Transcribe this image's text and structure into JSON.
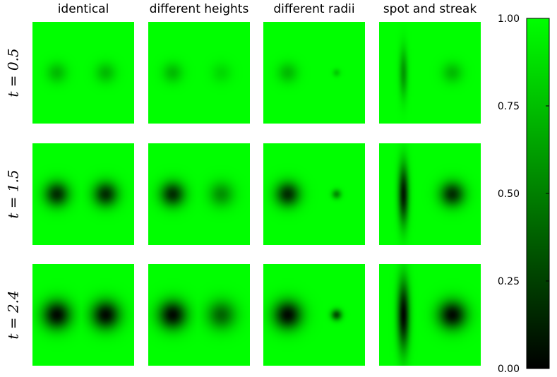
{
  "chart_data": {
    "type": "heatmap",
    "columns": [
      "identical",
      "different heights",
      "different radii",
      "spot and streak"
    ],
    "rows": [
      {
        "label": "t = 0.5",
        "t": 0.5
      },
      {
        "label": "t = 1.5",
        "t": 1.5
      },
      {
        "label": "t = 2.4",
        "t": 2.4
      }
    ],
    "panels": [
      [
        {
          "column": "identical",
          "t": 0.5,
          "min_left": 0.74,
          "min_right": 0.74
        },
        {
          "column": "different heights",
          "t": 0.5,
          "min_left": 0.74,
          "min_right": 0.86
        },
        {
          "column": "different radii",
          "t": 0.5,
          "min_left": 0.74,
          "min_right": 0.8
        },
        {
          "column": "spot and streak",
          "t": 0.5,
          "min_left": 0.6,
          "min_right": 0.74
        }
      ],
      [
        {
          "column": "identical",
          "t": 1.5,
          "min_left": 0.18,
          "min_right": 0.18
        },
        {
          "column": "different heights",
          "t": 1.5,
          "min_left": 0.18,
          "min_right": 0.58
        },
        {
          "column": "different radii",
          "t": 1.5,
          "min_left": 0.18,
          "min_right": 0.55
        },
        {
          "column": "spot and streak",
          "t": 1.5,
          "min_left": 0.1,
          "min_right": 0.18
        }
      ],
      [
        {
          "column": "identical",
          "t": 2.4,
          "min_left": 0.04,
          "min_right": 0.04
        },
        {
          "column": "different heights",
          "t": 2.4,
          "min_left": 0.04,
          "min_right": 0.4
        },
        {
          "column": "different radii",
          "t": 2.4,
          "min_left": 0.04,
          "min_right": 0.3
        },
        {
          "column": "spot and streak",
          "t": 2.4,
          "min_left": 0.03,
          "min_right": 0.04
        }
      ]
    ],
    "colorbar": {
      "min": 0.0,
      "max": 1.0,
      "ticks": [
        0.0,
        0.25,
        0.5,
        0.75,
        1.0
      ],
      "tick_labels": [
        "0.00",
        "0.25",
        "0.50",
        "0.75",
        "1.00"
      ],
      "colormap": "black-to-green",
      "color_low": "#000000",
      "color_high": "#00ff00"
    }
  }
}
